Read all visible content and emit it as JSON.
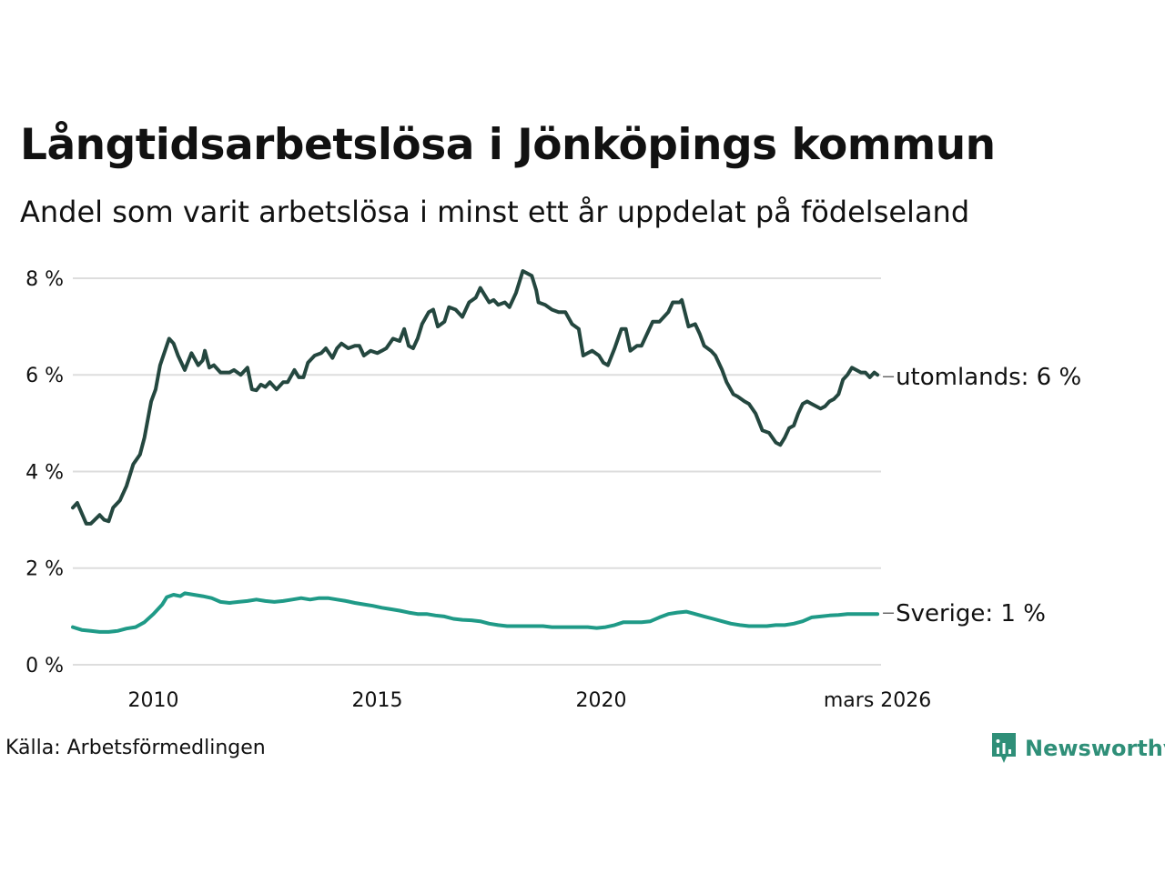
{
  "title": "Långtidsarbetslösa i Jönköpings kommun",
  "subtitle": "Andel som varit arbetslösa i minst ett år uppdelat på födelseland",
  "source": "Källa: Arbetsförmedlingen",
  "brand": "Newsworthy",
  "colors": {
    "utomlands": "#24473f",
    "sverige": "#1f9a87",
    "grid": "#dddddd",
    "brand": "#2f8f78"
  },
  "chart_data": {
    "type": "line",
    "title": "Långtidsarbetslösa i Jönköpings kommun",
    "subtitle": "Andel som varit arbetslösa i minst ett år uppdelat på födelseland",
    "xlabel": "",
    "ylabel": "",
    "xlim": [
      2008.2,
      2026.25
    ],
    "ylim": [
      0,
      8.15
    ],
    "y_ticks": [
      0,
      2,
      4,
      6,
      8
    ],
    "y_tick_labels": [
      "0 %",
      "2 %",
      "4 %",
      "6 %",
      "8 %"
    ],
    "x_ticks": [
      2010,
      2015,
      2020,
      2026.17
    ],
    "x_tick_labels": [
      "2010",
      "2015",
      "2020",
      "mars 2026"
    ],
    "grid": true,
    "series": [
      {
        "name": "utomlands",
        "end_label": "utomlands: 6 %",
        "points": [
          [
            2008.2,
            3.25
          ],
          [
            2008.3,
            3.35
          ],
          [
            2008.5,
            2.92
          ],
          [
            2008.6,
            2.92
          ],
          [
            2008.8,
            3.1
          ],
          [
            2008.9,
            3.0
          ],
          [
            2009.0,
            2.97
          ],
          [
            2009.1,
            3.25
          ],
          [
            2009.25,
            3.4
          ],
          [
            2009.4,
            3.7
          ],
          [
            2009.55,
            4.15
          ],
          [
            2009.7,
            4.35
          ],
          [
            2009.8,
            4.7
          ],
          [
            2009.95,
            5.45
          ],
          [
            2010.05,
            5.7
          ],
          [
            2010.15,
            6.2
          ],
          [
            2010.35,
            6.75
          ],
          [
            2010.45,
            6.65
          ],
          [
            2010.55,
            6.4
          ],
          [
            2010.7,
            6.1
          ],
          [
            2010.85,
            6.45
          ],
          [
            2011.0,
            6.2
          ],
          [
            2011.1,
            6.3
          ],
          [
            2011.15,
            6.5
          ],
          [
            2011.25,
            6.15
          ],
          [
            2011.35,
            6.2
          ],
          [
            2011.5,
            6.05
          ],
          [
            2011.7,
            6.05
          ],
          [
            2011.8,
            6.1
          ],
          [
            2011.95,
            6.0
          ],
          [
            2012.1,
            6.15
          ],
          [
            2012.2,
            5.7
          ],
          [
            2012.3,
            5.68
          ],
          [
            2012.4,
            5.8
          ],
          [
            2012.5,
            5.75
          ],
          [
            2012.6,
            5.85
          ],
          [
            2012.75,
            5.7
          ],
          [
            2012.9,
            5.85
          ],
          [
            2013.0,
            5.85
          ],
          [
            2013.15,
            6.1
          ],
          [
            2013.25,
            5.95
          ],
          [
            2013.35,
            5.95
          ],
          [
            2013.45,
            6.25
          ],
          [
            2013.6,
            6.4
          ],
          [
            2013.75,
            6.45
          ],
          [
            2013.85,
            6.55
          ],
          [
            2014.0,
            6.35
          ],
          [
            2014.1,
            6.55
          ],
          [
            2014.2,
            6.65
          ],
          [
            2014.35,
            6.55
          ],
          [
            2014.5,
            6.6
          ],
          [
            2014.6,
            6.6
          ],
          [
            2014.7,
            6.4
          ],
          [
            2014.85,
            6.5
          ],
          [
            2015.0,
            6.45
          ],
          [
            2015.1,
            6.5
          ],
          [
            2015.2,
            6.55
          ],
          [
            2015.35,
            6.75
          ],
          [
            2015.5,
            6.7
          ],
          [
            2015.6,
            6.95
          ],
          [
            2015.7,
            6.6
          ],
          [
            2015.8,
            6.55
          ],
          [
            2015.9,
            6.75
          ],
          [
            2016.0,
            7.05
          ],
          [
            2016.15,
            7.3
          ],
          [
            2016.25,
            7.35
          ],
          [
            2016.35,
            7.0
          ],
          [
            2016.5,
            7.1
          ],
          [
            2016.6,
            7.4
          ],
          [
            2016.75,
            7.35
          ],
          [
            2016.9,
            7.2
          ],
          [
            2017.05,
            7.5
          ],
          [
            2017.2,
            7.6
          ],
          [
            2017.3,
            7.8
          ],
          [
            2017.4,
            7.65
          ],
          [
            2017.5,
            7.5
          ],
          [
            2017.6,
            7.55
          ],
          [
            2017.7,
            7.45
          ],
          [
            2017.85,
            7.5
          ],
          [
            2017.95,
            7.4
          ],
          [
            2018.1,
            7.7
          ],
          [
            2018.25,
            8.15
          ],
          [
            2018.45,
            8.05
          ],
          [
            2018.55,
            7.75
          ],
          [
            2018.6,
            7.5
          ],
          [
            2018.75,
            7.45
          ],
          [
            2018.9,
            7.35
          ],
          [
            2019.05,
            7.3
          ],
          [
            2019.2,
            7.3
          ],
          [
            2019.35,
            7.05
          ],
          [
            2019.5,
            6.95
          ],
          [
            2019.6,
            6.4
          ],
          [
            2019.7,
            6.45
          ],
          [
            2019.8,
            6.5
          ],
          [
            2019.95,
            6.4
          ],
          [
            2020.05,
            6.25
          ],
          [
            2020.15,
            6.2
          ],
          [
            2020.3,
            6.55
          ],
          [
            2020.45,
            6.95
          ],
          [
            2020.55,
            6.95
          ],
          [
            2020.65,
            6.5
          ],
          [
            2020.8,
            6.6
          ],
          [
            2020.9,
            6.6
          ],
          [
            2021.05,
            6.9
          ],
          [
            2021.15,
            7.1
          ],
          [
            2021.3,
            7.1
          ],
          [
            2021.4,
            7.2
          ],
          [
            2021.5,
            7.3
          ],
          [
            2021.6,
            7.5
          ],
          [
            2021.75,
            7.5
          ],
          [
            2021.8,
            7.55
          ],
          [
            2021.95,
            7.0
          ],
          [
            2022.1,
            7.05
          ],
          [
            2022.2,
            6.85
          ],
          [
            2022.3,
            6.6
          ],
          [
            2022.45,
            6.5
          ],
          [
            2022.55,
            6.4
          ],
          [
            2022.7,
            6.1
          ],
          [
            2022.8,
            5.85
          ],
          [
            2022.95,
            5.6
          ],
          [
            2023.05,
            5.55
          ],
          [
            2023.2,
            5.45
          ],
          [
            2023.3,
            5.4
          ],
          [
            2023.45,
            5.2
          ],
          [
            2023.6,
            4.85
          ],
          [
            2023.75,
            4.8
          ],
          [
            2023.9,
            4.6
          ],
          [
            2024.0,
            4.55
          ],
          [
            2024.1,
            4.7
          ],
          [
            2024.2,
            4.9
          ],
          [
            2024.3,
            4.95
          ],
          [
            2024.4,
            5.2
          ],
          [
            2024.5,
            5.4
          ],
          [
            2024.6,
            5.45
          ],
          [
            2024.7,
            5.4
          ],
          [
            2024.8,
            5.35
          ],
          [
            2024.9,
            5.3
          ],
          [
            2025.0,
            5.35
          ],
          [
            2025.1,
            5.45
          ],
          [
            2025.2,
            5.5
          ],
          [
            2025.3,
            5.6
          ],
          [
            2025.4,
            5.9
          ],
          [
            2025.5,
            6.0
          ],
          [
            2025.6,
            6.15
          ],
          [
            2025.7,
            6.1
          ],
          [
            2025.8,
            6.05
          ],
          [
            2025.9,
            6.05
          ],
          [
            2026.0,
            5.95
          ],
          [
            2026.1,
            6.05
          ],
          [
            2026.17,
            6.0
          ]
        ]
      },
      {
        "name": "Sverige",
        "end_label": "Sverige: 1 %",
        "points": [
          [
            2008.2,
            0.78
          ],
          [
            2008.4,
            0.72
          ],
          [
            2008.6,
            0.7
          ],
          [
            2008.8,
            0.68
          ],
          [
            2009.0,
            0.68
          ],
          [
            2009.2,
            0.7
          ],
          [
            2009.4,
            0.75
          ],
          [
            2009.6,
            0.78
          ],
          [
            2009.8,
            0.88
          ],
          [
            2010.0,
            1.05
          ],
          [
            2010.2,
            1.25
          ],
          [
            2010.3,
            1.4
          ],
          [
            2010.45,
            1.45
          ],
          [
            2010.6,
            1.42
          ],
          [
            2010.7,
            1.48
          ],
          [
            2010.9,
            1.45
          ],
          [
            2011.1,
            1.42
          ],
          [
            2011.3,
            1.38
          ],
          [
            2011.5,
            1.3
          ],
          [
            2011.7,
            1.28
          ],
          [
            2011.9,
            1.3
          ],
          [
            2012.1,
            1.32
          ],
          [
            2012.3,
            1.35
          ],
          [
            2012.5,
            1.32
          ],
          [
            2012.7,
            1.3
          ],
          [
            2012.9,
            1.32
          ],
          [
            2013.1,
            1.35
          ],
          [
            2013.3,
            1.38
          ],
          [
            2013.5,
            1.35
          ],
          [
            2013.7,
            1.38
          ],
          [
            2013.9,
            1.38
          ],
          [
            2014.1,
            1.35
          ],
          [
            2014.3,
            1.32
          ],
          [
            2014.5,
            1.28
          ],
          [
            2014.7,
            1.25
          ],
          [
            2014.9,
            1.22
          ],
          [
            2015.1,
            1.18
          ],
          [
            2015.3,
            1.15
          ],
          [
            2015.5,
            1.12
          ],
          [
            2015.7,
            1.08
          ],
          [
            2015.9,
            1.05
          ],
          [
            2016.1,
            1.05
          ],
          [
            2016.3,
            1.02
          ],
          [
            2016.5,
            1.0
          ],
          [
            2016.7,
            0.95
          ],
          [
            2016.9,
            0.93
          ],
          [
            2017.1,
            0.92
          ],
          [
            2017.3,
            0.9
          ],
          [
            2017.5,
            0.85
          ],
          [
            2017.7,
            0.82
          ],
          [
            2017.9,
            0.8
          ],
          [
            2018.1,
            0.8
          ],
          [
            2018.3,
            0.8
          ],
          [
            2018.5,
            0.8
          ],
          [
            2018.7,
            0.8
          ],
          [
            2018.9,
            0.78
          ],
          [
            2019.1,
            0.78
          ],
          [
            2019.3,
            0.78
          ],
          [
            2019.5,
            0.78
          ],
          [
            2019.7,
            0.78
          ],
          [
            2019.9,
            0.76
          ],
          [
            2020.1,
            0.78
          ],
          [
            2020.3,
            0.82
          ],
          [
            2020.5,
            0.88
          ],
          [
            2020.7,
            0.88
          ],
          [
            2020.9,
            0.88
          ],
          [
            2021.1,
            0.9
          ],
          [
            2021.3,
            0.98
          ],
          [
            2021.5,
            1.05
          ],
          [
            2021.7,
            1.08
          ],
          [
            2021.9,
            1.1
          ],
          [
            2022.1,
            1.05
          ],
          [
            2022.3,
            1.0
          ],
          [
            2022.5,
            0.95
          ],
          [
            2022.7,
            0.9
          ],
          [
            2022.9,
            0.85
          ],
          [
            2023.1,
            0.82
          ],
          [
            2023.3,
            0.8
          ],
          [
            2023.5,
            0.8
          ],
          [
            2023.7,
            0.8
          ],
          [
            2023.9,
            0.82
          ],
          [
            2024.1,
            0.82
          ],
          [
            2024.3,
            0.85
          ],
          [
            2024.5,
            0.9
          ],
          [
            2024.7,
            0.98
          ],
          [
            2024.9,
            1.0
          ],
          [
            2025.1,
            1.02
          ],
          [
            2025.3,
            1.03
          ],
          [
            2025.5,
            1.05
          ],
          [
            2025.7,
            1.05
          ],
          [
            2025.9,
            1.05
          ],
          [
            2026.17,
            1.05
          ]
        ]
      }
    ]
  }
}
